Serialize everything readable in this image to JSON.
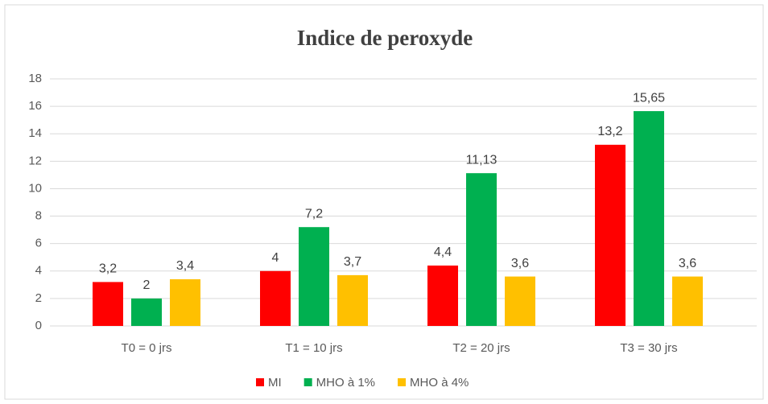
{
  "chart_data": {
    "type": "bar",
    "title": "Indice de peroxyde",
    "categories": [
      "T0 = 0 jrs",
      "T1 = 10 jrs",
      "T2 = 20 jrs",
      "T3 = 30 jrs"
    ],
    "series": [
      {
        "name": "MI",
        "color": "#ff0000",
        "values": [
          3.2,
          4,
          4.4,
          13.2
        ],
        "value_labels": [
          "3,2",
          "4",
          "4,4",
          "13,2"
        ]
      },
      {
        "name": "MHO à 1%",
        "color": "#00b050",
        "values": [
          2,
          7.2,
          11.13,
          15.65
        ],
        "value_labels": [
          "2",
          "7,2",
          "11,13",
          "15,65"
        ]
      },
      {
        "name": "MHO à 4%",
        "color": "#ffc000",
        "values": [
          3.4,
          3.7,
          3.6,
          3.6
        ],
        "value_labels": [
          "3,4",
          "3,7",
          "3,6",
          "3,6"
        ]
      }
    ],
    "ylim": [
      0,
      18
    ],
    "yticks": [
      0,
      2,
      4,
      6,
      8,
      10,
      12,
      14,
      16,
      18
    ],
    "grid": true,
    "legend": "bottom"
  }
}
